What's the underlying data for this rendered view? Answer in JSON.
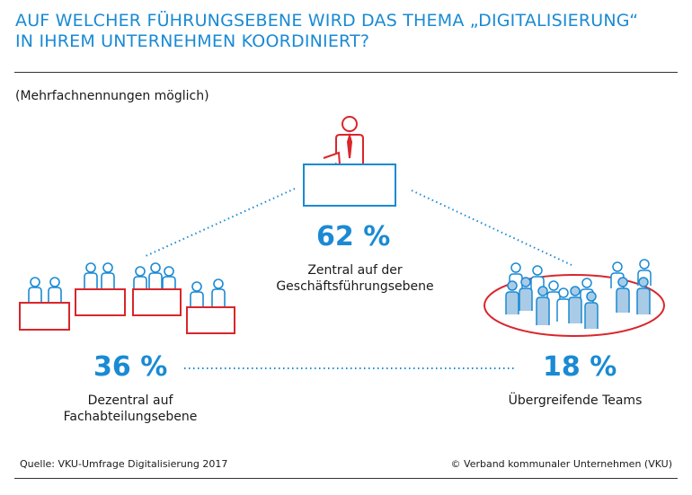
{
  "title_line1": "AUF WELCHER FÜHRUNGSEBENE WIRD DAS THEMA „DIGITALISIERUNG“",
  "title_line2": "IN IHREM UNTERNEHMEN KOORDINIERT?",
  "subtitle": "(Mehrfachnennungen möglich)",
  "colors": {
    "accent": "#1a8ad4",
    "red": "#d9262b",
    "light_blue": "#a9cbe6"
  },
  "chart_data": {
    "type": "infographic",
    "unit": "%",
    "categories": [
      "Zentral auf der Geschäftsführungsebene",
      "Dezentral auf Fachabteilungsebene",
      "Übergreifende Teams"
    ],
    "values": [
      62,
      36,
      18
    ],
    "items": [
      {
        "value": 62,
        "pct_label": "62 %",
        "label_lines": [
          "Zentral auf der",
          "Geschäftsführungsebene"
        ]
      },
      {
        "value": 36,
        "pct_label": "36 %",
        "label_lines": [
          "Dezentral auf",
          "Fachabteilungsebene"
        ]
      },
      {
        "value": 18,
        "pct_label": "18 %",
        "label_lines": [
          "Übergreifende Teams"
        ]
      }
    ]
  },
  "footer": {
    "source": "Quelle: VKU-Umfrage Digitalisierung 2017",
    "copyright": "© Verband kommunaler Unternehmen (VKU)"
  }
}
